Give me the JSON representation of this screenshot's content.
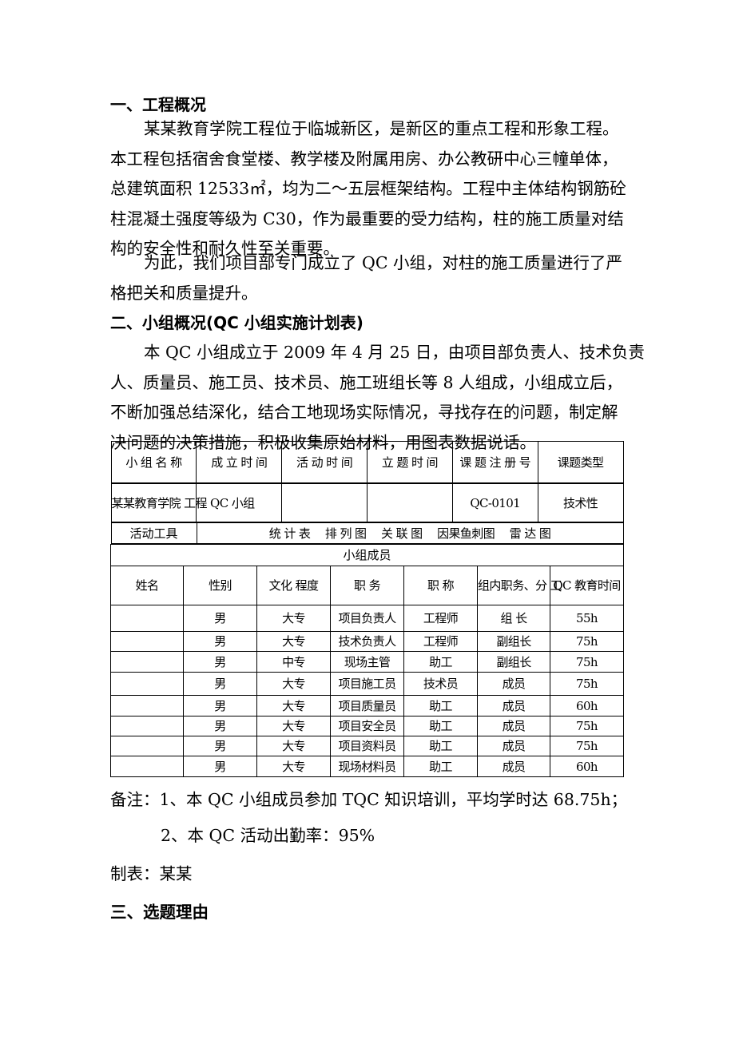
{
  "s1": {
    "heading": "一、工程概况",
    "p1": [
      "某某教育学院工程位于临城新区，是新区的重点工程和形象工程。",
      "本工程包括宿舍食堂楼、教学楼及附属用房、办公教研中心三幢单体，",
      "总建筑面积 12533㎡，均为二～五层框架结构。工程中主体结构钢筋砼",
      "柱混凝土强度等级为 C30，作为最重要的受力结构，柱的施工质量对结",
      "构的安全性和耐久性至关重要。"
    ],
    "p2": [
      "为此，我们项目部专门成立了 QC 小组，对柱的施工质量进行了严",
      "格把关和质量提升。"
    ]
  },
  "s2": {
    "heading": "二、小组概况(QC 小组实施计划表)",
    "p1": [
      "本 QC 小组成立于 2009 年 4 月 25 日，由项目部负责人、技术负责",
      "人、质量员、施工员、技术员、施工班组长等 8 人组成，小组成立后，",
      "不断加强总结深化，结合工地现场实际情况，寻找存在的问题，制定解",
      "决问题的决策措施，积极收集原始材料，用图表数据说话。"
    ]
  },
  "table": {
    "head": [
      "小 组 名 称",
      "成 立 时 间",
      "活 动 时 间",
      "立 题\n时 间",
      "课 题\n注 册 号",
      "课题类型"
    ],
    "info": [
      "某某教育学院\n工程 QC 小组",
      "",
      "",
      "",
      "QC-0101",
      "技术性"
    ],
    "tools_label": "活动工具",
    "tools": "统 计 表　 排 列 图　 关 联 图　 因果鱼刺图　 雷 达 图",
    "members_title": "小组成员",
    "member_head": [
      "姓名",
      "性别",
      "文化\n程度",
      "职 务",
      "职 称",
      "组内职务、分\n工",
      "QC 教育时间"
    ],
    "members": [
      [
        "",
        "男",
        "大专",
        "项目负责人",
        "工程师",
        "组 长",
        "55h"
      ],
      [
        "",
        "男",
        "大专",
        "技术负责人",
        "工程师",
        "副组长",
        "75h"
      ],
      [
        "",
        "男",
        "中专",
        "现场主管",
        "助工",
        "副组长",
        "75h"
      ],
      [
        "",
        "男",
        "大专",
        "项目施工员",
        "技术员",
        "成员",
        "75h"
      ],
      [
        "",
        "男",
        "大专",
        "项目质量员",
        "助工",
        "成员",
        "60h"
      ],
      [
        "",
        "男",
        "大专",
        "项目安全员",
        "助工",
        "成员",
        "75h"
      ],
      [
        "",
        "男",
        "大专",
        "项目资料员",
        "助工",
        "成员",
        "75h"
      ],
      [
        "",
        "男",
        "大专",
        "现场材料员",
        "助工",
        "成员",
        "60h"
      ]
    ]
  },
  "notes": [
    "备注：1、本 QC 小组成员参加 TQC 知识培训，平均学时达 68.75h；",
    "2、本 QC 活动出勤率：95%"
  ],
  "made_by": "制表：某某",
  "s3": {
    "heading": "三、选题理由"
  }
}
